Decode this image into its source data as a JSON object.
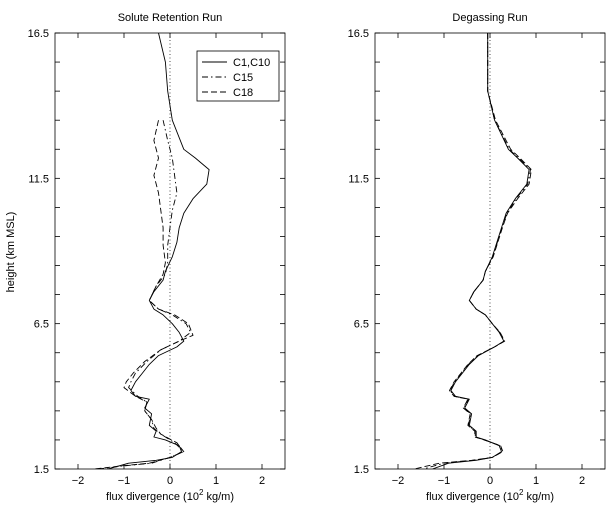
{
  "figure": {
    "shared_ylabel": "height (km MSL)"
  },
  "chart_data": [
    {
      "type": "line",
      "title": "Solute Retention Run",
      "xlabel": "flux divergence (10",
      "xlabel_sup": "2",
      "xlabel_tail": " kg/m)",
      "xlim": [
        -2.5,
        2.5
      ],
      "ylim": [
        1.5,
        16.5
      ],
      "xticks": [
        -2,
        -1,
        0,
        1,
        2
      ],
      "yticks": [
        1.5,
        6.5,
        11.5,
        16.5
      ],
      "legend": {
        "position": "top-right"
      },
      "reference_line_x": 0,
      "series": [
        {
          "name": "C1,C10",
          "style": "solid",
          "color": "#000000",
          "points": [
            [
              -0.25,
              16.5
            ],
            [
              -0.1,
              15.5
            ],
            [
              -0.05,
              14.5
            ],
            [
              0.05,
              13.5
            ],
            [
              0.3,
              12.5
            ],
            [
              0.55,
              12.2
            ],
            [
              0.85,
              11.8
            ],
            [
              0.8,
              11.3
            ],
            [
              0.5,
              10.8
            ],
            [
              0.3,
              10.3
            ],
            [
              0.2,
              9.8
            ],
            [
              0.15,
              9.3
            ],
            [
              0.05,
              8.8
            ],
            [
              -0.1,
              8.3
            ],
            [
              -0.15,
              8.0
            ],
            [
              -0.35,
              7.6
            ],
            [
              -0.45,
              7.3
            ],
            [
              -0.35,
              7.0
            ],
            [
              -0.15,
              6.8
            ],
            [
              0.05,
              6.5
            ],
            [
              0.2,
              6.2
            ],
            [
              0.3,
              5.9
            ],
            [
              0.15,
              5.7
            ],
            [
              -0.25,
              5.4
            ],
            [
              -0.45,
              5.1
            ],
            [
              -0.6,
              4.8
            ],
            [
              -0.75,
              4.5
            ],
            [
              -0.85,
              4.2
            ],
            [
              -0.75,
              4.0
            ],
            [
              -0.45,
              3.9
            ],
            [
              -0.55,
              3.6
            ],
            [
              -0.4,
              3.4
            ],
            [
              -0.45,
              3.0
            ],
            [
              -0.3,
              2.8
            ],
            [
              -0.35,
              2.6
            ],
            [
              -0.1,
              2.5
            ],
            [
              0.2,
              2.3
            ],
            [
              0.25,
              2.1
            ],
            [
              0.05,
              1.9
            ],
            [
              -0.3,
              1.8
            ],
            [
              -0.9,
              1.7
            ],
            [
              -1.35,
              1.5
            ]
          ]
        },
        {
          "name": "C15",
          "style": "dashdot",
          "color": "#000000",
          "points": [
            [
              -0.15,
              13.5
            ],
            [
              -0.05,
              12.8
            ],
            [
              0.05,
              12.2
            ],
            [
              0.1,
              11.6
            ],
            [
              0.15,
              11.0
            ],
            [
              0.05,
              10.4
            ],
            [
              0.0,
              9.8
            ],
            [
              -0.05,
              9.2
            ],
            [
              -0.05,
              8.6
            ],
            [
              -0.1,
              8.2
            ],
            [
              -0.3,
              7.8
            ],
            [
              -0.45,
              7.3
            ],
            [
              -0.25,
              7.0
            ],
            [
              0.05,
              6.8
            ],
            [
              0.35,
              6.5
            ],
            [
              0.45,
              6.2
            ],
            [
              0.2,
              5.9
            ],
            [
              -0.2,
              5.6
            ],
            [
              -0.5,
              5.2
            ],
            [
              -0.75,
              4.8
            ],
            [
              -0.85,
              4.5
            ],
            [
              -0.9,
              4.3
            ],
            [
              -0.7,
              4.0
            ],
            [
              -0.5,
              3.8
            ],
            [
              -0.55,
              3.5
            ],
            [
              -0.4,
              3.2
            ],
            [
              -0.35,
              2.9
            ],
            [
              -0.2,
              2.7
            ],
            [
              0.1,
              2.4
            ],
            [
              0.3,
              2.1
            ],
            [
              0.0,
              1.9
            ],
            [
              -0.4,
              1.7
            ],
            [
              -1.05,
              1.6
            ],
            [
              -1.55,
              1.5
            ]
          ]
        },
        {
          "name": "C18",
          "style": "dashed",
          "color": "#000000",
          "points": [
            [
              -0.25,
              13.5
            ],
            [
              -0.35,
              12.8
            ],
            [
              -0.25,
              12.2
            ],
            [
              -0.35,
              11.6
            ],
            [
              -0.25,
              11.0
            ],
            [
              -0.2,
              10.4
            ],
            [
              -0.15,
              9.8
            ],
            [
              -0.15,
              9.2
            ],
            [
              -0.1,
              8.6
            ],
            [
              -0.15,
              8.2
            ],
            [
              -0.3,
              7.8
            ],
            [
              -0.45,
              7.3
            ],
            [
              -0.25,
              7.0
            ],
            [
              0.1,
              6.8
            ],
            [
              0.4,
              6.5
            ],
            [
              0.5,
              6.1
            ],
            [
              0.2,
              5.9
            ],
            [
              -0.2,
              5.6
            ],
            [
              -0.55,
              5.2
            ],
            [
              -0.8,
              4.8
            ],
            [
              -0.95,
              4.5
            ],
            [
              -1.0,
              4.3
            ],
            [
              -0.75,
              4.0
            ],
            [
              -0.5,
              3.8
            ],
            [
              -0.55,
              3.5
            ],
            [
              -0.4,
              3.2
            ],
            [
              -0.3,
              2.9
            ],
            [
              -0.2,
              2.7
            ],
            [
              0.15,
              2.4
            ],
            [
              0.3,
              2.1
            ],
            [
              0.0,
              1.9
            ],
            [
              -0.45,
              1.7
            ],
            [
              -1.1,
              1.6
            ],
            [
              -1.65,
              1.5
            ]
          ]
        }
      ]
    },
    {
      "type": "line",
      "title": "Degassing Run",
      "xlabel": "flux divergence (10",
      "xlabel_sup": "2",
      "xlabel_tail": " kg/m)",
      "xlim": [
        -2.5,
        2.5
      ],
      "ylim": [
        1.5,
        16.5
      ],
      "xticks": [
        -2,
        -1,
        0,
        1,
        2
      ],
      "yticks": [
        1.5,
        6.5,
        11.5,
        16.5
      ],
      "reference_line_x": 0,
      "series": [
        {
          "name": "C1,C10",
          "style": "solid",
          "color": "#000000",
          "points": [
            [
              -0.05,
              16.5
            ],
            [
              -0.05,
              15.5
            ],
            [
              -0.05,
              14.5
            ],
            [
              0.1,
              13.5
            ],
            [
              0.4,
              12.5
            ],
            [
              0.6,
              12.2
            ],
            [
              0.85,
              11.8
            ],
            [
              0.8,
              11.3
            ],
            [
              0.55,
              10.8
            ],
            [
              0.35,
              10.3
            ],
            [
              0.25,
              9.8
            ],
            [
              0.15,
              9.3
            ],
            [
              0.05,
              8.8
            ],
            [
              -0.1,
              8.3
            ],
            [
              -0.15,
              8.0
            ],
            [
              -0.35,
              7.6
            ],
            [
              -0.45,
              7.3
            ],
            [
              -0.3,
              7.0
            ],
            [
              -0.1,
              6.8
            ],
            [
              0.05,
              6.5
            ],
            [
              0.2,
              6.2
            ],
            [
              0.3,
              5.9
            ],
            [
              0.1,
              5.7
            ],
            [
              -0.25,
              5.4
            ],
            [
              -0.45,
              5.1
            ],
            [
              -0.6,
              4.8
            ],
            [
              -0.75,
              4.5
            ],
            [
              -0.85,
              4.2
            ],
            [
              -0.75,
              4.0
            ],
            [
              -0.45,
              3.9
            ],
            [
              -0.55,
              3.6
            ],
            [
              -0.4,
              3.4
            ],
            [
              -0.45,
              3.0
            ],
            [
              -0.3,
              2.8
            ],
            [
              -0.3,
              2.6
            ],
            [
              -0.1,
              2.5
            ],
            [
              0.2,
              2.3
            ],
            [
              0.25,
              2.1
            ],
            [
              0.05,
              1.9
            ],
            [
              -0.3,
              1.8
            ],
            [
              -0.9,
              1.7
            ],
            [
              -1.25,
              1.5
            ]
          ]
        },
        {
          "name": "C15",
          "style": "dashdot",
          "color": "#000000",
          "points": [
            [
              -0.05,
              16.5
            ],
            [
              -0.05,
              15.5
            ],
            [
              -0.05,
              14.5
            ],
            [
              0.1,
              13.5
            ],
            [
              0.42,
              12.5
            ],
            [
              0.62,
              12.2
            ],
            [
              0.88,
              11.8
            ],
            [
              0.82,
              11.3
            ],
            [
              0.57,
              10.8
            ],
            [
              0.37,
              10.3
            ],
            [
              0.26,
              9.8
            ],
            [
              0.16,
              9.3
            ],
            [
              0.06,
              8.8
            ],
            [
              -0.1,
              8.3
            ],
            [
              -0.15,
              8.0
            ],
            [
              -0.35,
              7.6
            ],
            [
              -0.45,
              7.3
            ],
            [
              -0.3,
              7.0
            ],
            [
              -0.1,
              6.8
            ],
            [
              0.05,
              6.5
            ],
            [
              0.21,
              6.2
            ],
            [
              0.31,
              5.9
            ],
            [
              0.1,
              5.7
            ],
            [
              -0.27,
              5.4
            ],
            [
              -0.47,
              5.1
            ],
            [
              -0.62,
              4.8
            ],
            [
              -0.77,
              4.5
            ],
            [
              -0.87,
              4.2
            ],
            [
              -0.77,
              4.0
            ],
            [
              -0.47,
              3.9
            ],
            [
              -0.57,
              3.6
            ],
            [
              -0.42,
              3.4
            ],
            [
              -0.47,
              3.0
            ],
            [
              -0.32,
              2.8
            ],
            [
              -0.32,
              2.6
            ],
            [
              -0.12,
              2.5
            ],
            [
              0.22,
              2.3
            ],
            [
              0.27,
              2.1
            ],
            [
              0.05,
              1.9
            ],
            [
              -0.35,
              1.8
            ],
            [
              -1.0,
              1.7
            ],
            [
              -1.45,
              1.5
            ]
          ]
        },
        {
          "name": "C18",
          "style": "dashed",
          "color": "#000000",
          "points": [
            [
              -0.05,
              16.5
            ],
            [
              -0.05,
              15.5
            ],
            [
              -0.05,
              14.5
            ],
            [
              0.12,
              13.5
            ],
            [
              0.45,
              12.5
            ],
            [
              0.65,
              12.2
            ],
            [
              0.9,
              11.8
            ],
            [
              0.85,
              11.3
            ],
            [
              0.6,
              10.8
            ],
            [
              0.38,
              10.3
            ],
            [
              0.27,
              9.8
            ],
            [
              0.17,
              9.3
            ],
            [
              0.07,
              8.8
            ],
            [
              -0.1,
              8.3
            ],
            [
              -0.15,
              8.0
            ],
            [
              -0.35,
              7.6
            ],
            [
              -0.45,
              7.3
            ],
            [
              -0.3,
              7.0
            ],
            [
              -0.1,
              6.8
            ],
            [
              0.05,
              6.5
            ],
            [
              0.22,
              6.2
            ],
            [
              0.32,
              5.9
            ],
            [
              0.1,
              5.7
            ],
            [
              -0.28,
              5.4
            ],
            [
              -0.48,
              5.1
            ],
            [
              -0.63,
              4.8
            ],
            [
              -0.78,
              4.5
            ],
            [
              -0.88,
              4.2
            ],
            [
              -0.78,
              4.0
            ],
            [
              -0.48,
              3.9
            ],
            [
              -0.58,
              3.6
            ],
            [
              -0.43,
              3.4
            ],
            [
              -0.48,
              3.0
            ],
            [
              -0.33,
              2.8
            ],
            [
              -0.33,
              2.6
            ],
            [
              -0.13,
              2.5
            ],
            [
              0.23,
              2.3
            ],
            [
              0.28,
              2.1
            ],
            [
              0.05,
              1.9
            ],
            [
              -0.4,
              1.8
            ],
            [
              -1.1,
              1.7
            ],
            [
              -1.65,
              1.5
            ]
          ]
        }
      ]
    }
  ]
}
